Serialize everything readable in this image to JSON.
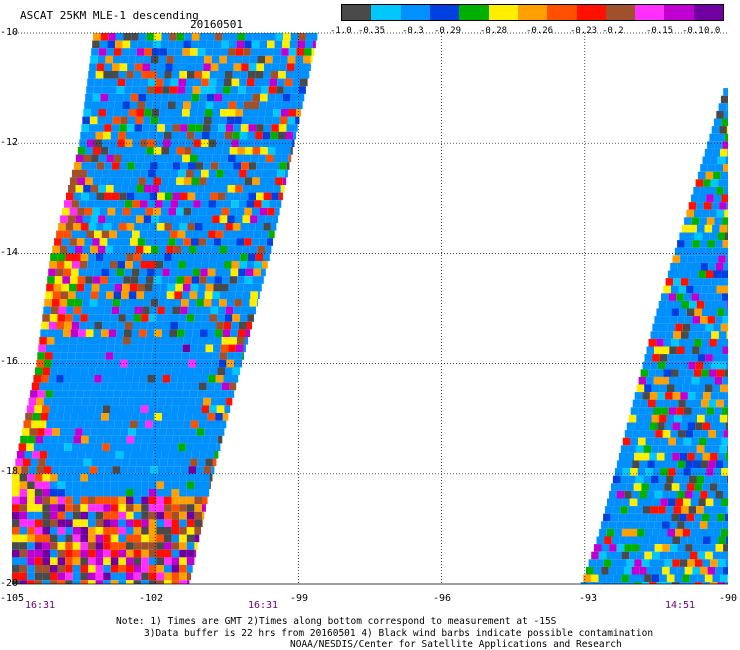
{
  "title": "ASCAT 25KM MLE-1 descending",
  "date": "20160501",
  "colorbar": {
    "colors": [
      "#4a4a4a",
      "#00c8ff",
      "#0090ff",
      "#0040e0",
      "#00b000",
      "#ffee00",
      "#ffa000",
      "#ff5000",
      "#ff1000",
      "#a0502a",
      "#ff30ff",
      "#c000d0",
      "#7000a0"
    ],
    "labels": [
      "-1.0",
      "-0.35",
      "-0.3",
      "-0.29",
      "-0.28",
      "-0.26",
      "-0.23",
      "-0.2",
      "-0.15",
      "-0.1",
      "0.0"
    ]
  },
  "axes": {
    "lat_labels": [
      "-10",
      "-12",
      "-14",
      "-16",
      "-18",
      "-20"
    ],
    "lon_labels": [
      "-105",
      "-102",
      "-99",
      "-96",
      "-93",
      "-90"
    ],
    "lat_range": [
      -20,
      -10
    ],
    "lon_range": [
      -105,
      -90
    ],
    "grid": true
  },
  "times": [
    "16:31",
    "16:31",
    "14:51"
  ],
  "notes": {
    "line1": "Note: 1) Times are GMT 2)Times along bottom correspond to measurement at -15S",
    "line2": "3)Data buffer is 22 hrs from 20160501 4) Black wind barbs indicate possible contamination",
    "line3": "NOAA/NESDIS/Center for Satellite Applications and Research"
  },
  "swaths": [
    {
      "name": "west-swath",
      "lon_left_at_lat": [
        [
          -10,
          -103.3
        ],
        [
          -12,
          -103.6
        ],
        [
          -14,
          -104.2
        ],
        [
          -16,
          -104.5
        ],
        [
          -18,
          -105
        ],
        [
          -20,
          -105
        ]
      ],
      "lon_right_at_lat": [
        [
          -10,
          -98.6
        ],
        [
          -12,
          -99.1
        ],
        [
          -14,
          -99.6
        ],
        [
          -16,
          -100.2
        ],
        [
          -18,
          -100.8
        ],
        [
          -20,
          -101.3
        ]
      ]
    },
    {
      "name": "east-swath",
      "lon_left_at_lat": [
        [
          -11,
          -90.1
        ],
        [
          -13,
          -90.8
        ],
        [
          -15,
          -91.5
        ],
        [
          -17,
          -92.1
        ],
        [
          -19,
          -92.7
        ],
        [
          -20,
          -93.1
        ]
      ],
      "lon_right_at_lat": [
        [
          -11,
          -90
        ],
        [
          -13,
          -90
        ],
        [
          -15,
          -90
        ],
        [
          -17,
          -90
        ],
        [
          -19,
          -90
        ],
        [
          -20,
          -90
        ]
      ]
    }
  ]
}
